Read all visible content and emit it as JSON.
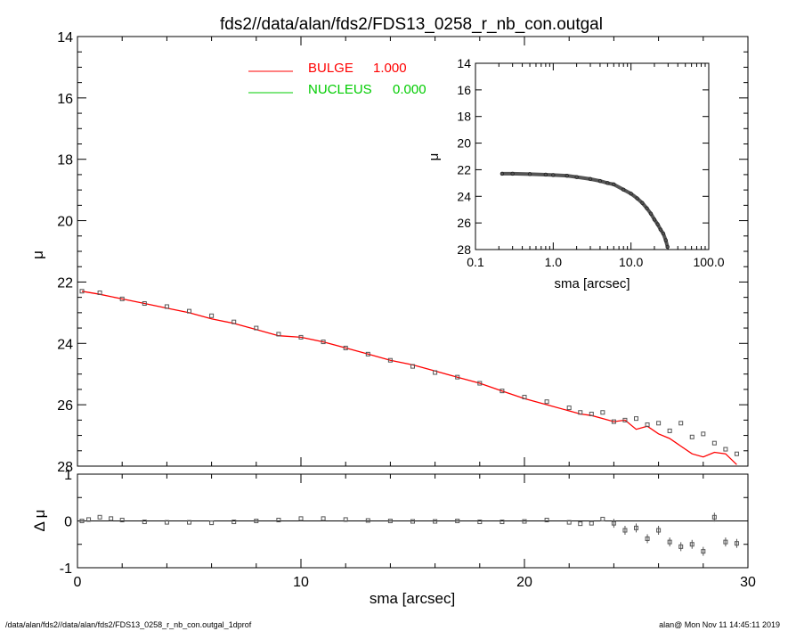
{
  "title": "fds2//data/alan/fds2/FDS13_0258_r_nb_con.outgal",
  "footer_left": "/data/alan/fds2//data/alan/fds2/FDS13_0258_r_nb_con.outgal_1dprof",
  "footer_right": "alan@  Mon Nov 11 14:45:11 2019",
  "colors": {
    "bulge": "#ff0000",
    "nucleus": "#00cc00",
    "data": "#555555",
    "axis": "#000000"
  },
  "chart_data": [
    {
      "id": "main",
      "type": "scatter",
      "xlabel": "",
      "ylabel": "μ",
      "xlim": [
        0,
        30
      ],
      "ylim": [
        28,
        14
      ],
      "yticks": [
        "14",
        "16",
        "18",
        "20",
        "22",
        "24",
        "26",
        "28"
      ],
      "legend": [
        {
          "label": "BULGE",
          "value": "1.000",
          "color": "#ff0000"
        },
        {
          "label": "NUCLEUS",
          "value": "0.000",
          "color": "#00cc00"
        }
      ],
      "legend_position": "top-center",
      "series": [
        {
          "name": "BULGE",
          "kind": "line",
          "color": "#ff0000",
          "x": [
            0.2,
            1,
            2,
            3,
            4,
            5,
            6,
            7,
            8,
            9,
            10,
            11,
            12,
            13,
            14,
            15,
            16,
            17,
            18,
            19,
            20,
            21,
            22,
            22.5,
            23,
            23.5,
            24,
            24.5,
            25,
            25.5,
            26,
            26.5,
            27,
            27.5,
            28,
            28.5,
            29,
            29.5
          ],
          "y": [
            22.3,
            22.4,
            22.55,
            22.7,
            22.85,
            23.0,
            23.2,
            23.35,
            23.55,
            23.75,
            23.8,
            23.95,
            24.15,
            24.35,
            24.55,
            24.7,
            24.9,
            25.1,
            25.3,
            25.55,
            25.8,
            26.0,
            26.2,
            26.3,
            26.35,
            26.45,
            26.55,
            26.5,
            26.8,
            26.7,
            26.95,
            27.1,
            27.35,
            27.6,
            27.7,
            27.55,
            27.6,
            27.95
          ]
        },
        {
          "name": "",
          "kind": "points",
          "x": [
            0.2,
            1,
            2,
            3,
            4,
            5,
            6,
            7,
            8,
            9,
            10,
            11,
            12,
            13,
            14,
            15,
            16,
            17,
            18,
            19,
            20,
            21,
            22,
            22.5,
            23,
            23.5,
            24,
            24.5,
            25,
            25.5,
            26,
            26.5,
            27,
            27.5,
            28,
            28.5,
            29,
            29.5
          ],
          "y": [
            22.3,
            22.35,
            22.55,
            22.7,
            22.8,
            22.95,
            23.1,
            23.3,
            23.5,
            23.7,
            23.8,
            23.95,
            24.15,
            24.35,
            24.55,
            24.75,
            24.95,
            25.1,
            25.3,
            25.55,
            25.75,
            25.9,
            26.1,
            26.25,
            26.3,
            26.25,
            26.55,
            26.5,
            26.45,
            26.65,
            26.6,
            26.85,
            26.6,
            27.05,
            26.95,
            27.25,
            27.45,
            27.6
          ]
        }
      ]
    },
    {
      "id": "residual",
      "type": "scatter",
      "xlabel": "sma [arcsec]",
      "ylabel": "Δ μ",
      "xlim": [
        0,
        30
      ],
      "ylim": [
        -1,
        1
      ],
      "xticks": [
        "0",
        "10",
        "20",
        "30"
      ],
      "yticks": [
        "1",
        "0",
        "-1"
      ],
      "series": [
        {
          "name": "",
          "x": [
            0.2,
            0.5,
            1.0,
            1.5,
            2.0,
            3,
            4,
            5,
            6,
            7,
            8,
            9,
            10,
            11,
            12,
            13,
            14,
            15,
            16,
            17,
            18,
            19,
            20,
            21,
            22,
            22.5,
            23,
            23.5,
            24,
            24.5,
            25,
            25.5,
            26,
            26.5,
            27,
            27.5,
            28,
            28.5,
            29,
            29.5
          ],
          "y": [
            0.0,
            0.03,
            0.08,
            0.05,
            0.02,
            -0.02,
            -0.03,
            -0.03,
            -0.04,
            -0.02,
            0.0,
            0.02,
            0.05,
            0.05,
            0.03,
            0.01,
            0.0,
            -0.01,
            -0.01,
            0.0,
            -0.02,
            -0.02,
            -0.01,
            0.02,
            -0.03,
            -0.06,
            -0.05,
            0.04,
            -0.05,
            -0.2,
            -0.15,
            -0.38,
            -0.2,
            -0.45,
            -0.55,
            -0.5,
            -0.65,
            0.08,
            -0.45,
            -0.48
          ]
        }
      ]
    },
    {
      "id": "inset",
      "type": "scatter",
      "xlabel": "sma [arcsec]",
      "ylabel": "μ",
      "xscale": "log",
      "xlim": [
        0.1,
        100.0
      ],
      "ylim": [
        28,
        14
      ],
      "xticks": [
        "0.1",
        "1.0",
        "10.0",
        "100.0"
      ],
      "yticks": [
        "14",
        "16",
        "18",
        "20",
        "22",
        "24",
        "26",
        "28"
      ],
      "series": [
        {
          "name": "",
          "x": [
            0.22,
            0.3,
            0.5,
            0.8,
            1.0,
            1.5,
            2.0,
            3.0,
            4.0,
            5.0,
            6.0,
            8.0,
            10.0,
            12.0,
            14.0,
            16.0,
            18.0,
            20.0,
            22.0,
            24.0,
            26.0,
            28.0,
            29.5
          ],
          "y": [
            22.3,
            22.3,
            22.33,
            22.37,
            22.4,
            22.45,
            22.55,
            22.7,
            22.85,
            23.0,
            23.1,
            23.5,
            23.8,
            24.15,
            24.5,
            24.9,
            25.3,
            25.75,
            26.1,
            26.5,
            26.8,
            27.3,
            27.8
          ]
        }
      ]
    }
  ]
}
